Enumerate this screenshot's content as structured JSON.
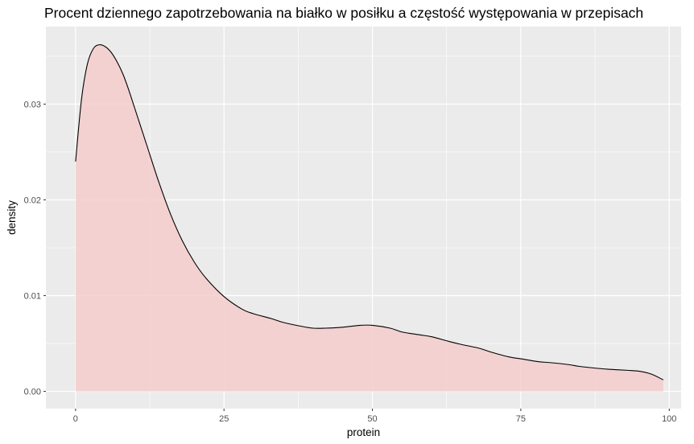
{
  "chart_data": {
    "type": "area",
    "title": "Procent dziennego zapotrzebowania na białko w posiłku a częstość występowania w przepisach",
    "xlabel": "protein",
    "ylabel": "density",
    "xlim": [
      -5.0,
      102.0
    ],
    "ylim": [
      -0.0018,
      0.0381
    ],
    "x_ticks": [
      0,
      25,
      50,
      75,
      100
    ],
    "x_tick_labels": [
      "0",
      "25",
      "50",
      "75",
      "100"
    ],
    "y_ticks": [
      0.0,
      0.01,
      0.02,
      0.03
    ],
    "y_tick_labels": [
      "0.00",
      "0.01",
      "0.02",
      "0.03"
    ],
    "grid": true,
    "legend": "none",
    "series": [
      {
        "x": [
          0,
          1,
          2,
          3,
          4,
          5,
          6,
          7,
          8,
          9,
          10,
          12,
          14,
          16,
          18,
          20,
          22,
          25,
          28,
          30,
          33,
          35,
          38,
          40,
          42,
          45,
          48,
          50,
          53,
          55,
          58,
          60,
          63,
          65,
          68,
          70,
          73,
          75,
          78,
          80,
          83,
          85,
          88,
          90,
          93,
          95,
          97,
          99
        ],
        "y": [
          0.024,
          0.0305,
          0.0342,
          0.0358,
          0.0362,
          0.036,
          0.0354,
          0.0344,
          0.0331,
          0.0314,
          0.0295,
          0.0257,
          0.0219,
          0.0185,
          0.0157,
          0.0135,
          0.0118,
          0.0099,
          0.0086,
          0.0081,
          0.0076,
          0.0072,
          0.0068,
          0.0066,
          0.0066,
          0.0067,
          0.0069,
          0.0069,
          0.0066,
          0.0062,
          0.0059,
          0.0057,
          0.0052,
          0.0049,
          0.0045,
          0.0041,
          0.0036,
          0.0034,
          0.0031,
          0.003,
          0.0028,
          0.0026,
          0.0024,
          0.0023,
          0.0022,
          0.0021,
          0.0018,
          0.0012
        ]
      }
    ],
    "colors": {
      "panel_bg": "#ebebeb",
      "grid_major": "#ffffff",
      "fill": "#f4cccc",
      "line": "#000000",
      "tick": "#4d4d4d"
    }
  }
}
